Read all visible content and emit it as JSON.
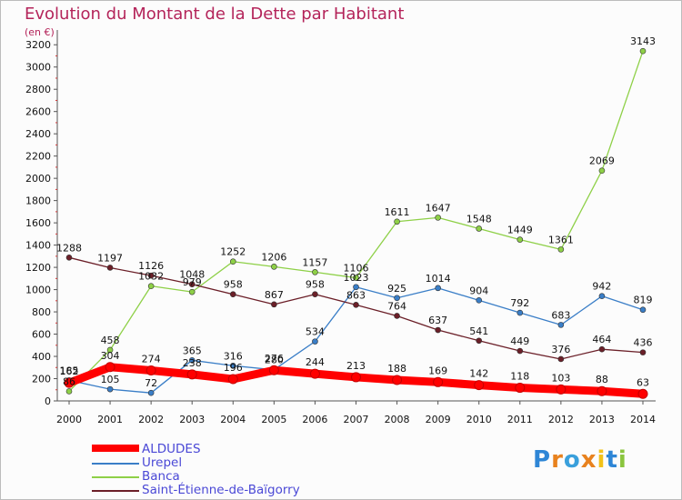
{
  "title": "Evolution du Montant de la Dette par Habitant",
  "unit": "(en €)",
  "logo": "Proxiti",
  "chart_data": {
    "type": "line",
    "title": "Evolution du Montant de la Dette par Habitant",
    "subtitle": "(en €)",
    "x": [
      "2000",
      "2001",
      "2002",
      "2003",
      "2004",
      "2005",
      "2006",
      "2007",
      "2008",
      "2009",
      "2010",
      "2011",
      "2012",
      "2013",
      "2014"
    ],
    "ylim": [
      0,
      3300
    ],
    "yticks": [
      0,
      200,
      400,
      600,
      800,
      1000,
      1200,
      1400,
      1600,
      1800,
      2000,
      2200,
      2400,
      2600,
      2800,
      3000,
      3200
    ],
    "grid": false,
    "legend": "bottom-left",
    "series": [
      {
        "name": "ALDUDES",
        "color": "#ff0000",
        "values": [
          162,
          304,
          274,
          238,
          196,
          276,
          244,
          213,
          188,
          169,
          142,
          118,
          103,
          88,
          63
        ]
      },
      {
        "name": "Urepel",
        "color": "#3a7ec7",
        "values": [
          185,
          105,
          72,
          365,
          316,
          280,
          534,
          1023,
          925,
          1014,
          904,
          792,
          683,
          942,
          819
        ]
      },
      {
        "name": "Banca",
        "color": "#8ed047",
        "values": [
          86,
          458,
          1032,
          979,
          1252,
          1206,
          1157,
          1106,
          1611,
          1647,
          1548,
          1449,
          1361,
          2069,
          3143
        ]
      },
      {
        "name": "Saint-Étienne-de-Baïgorry",
        "color": "#6b1f28",
        "values": [
          1288,
          1197,
          1126,
          1048,
          958,
          867,
          958,
          863,
          764,
          637,
          541,
          449,
          376,
          464,
          436
        ]
      }
    ]
  }
}
